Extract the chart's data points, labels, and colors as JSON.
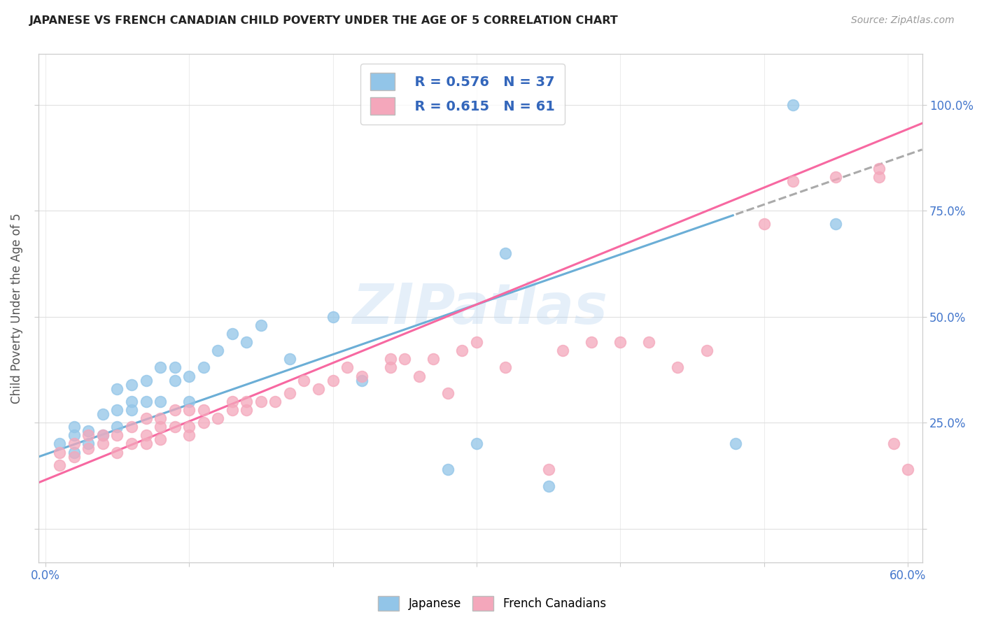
{
  "title": "JAPANESE VS FRENCH CANADIAN CHILD POVERTY UNDER THE AGE OF 5 CORRELATION CHART",
  "source": "Source: ZipAtlas.com",
  "ylabel": "Child Poverty Under the Age of 5",
  "xlim": [
    -0.005,
    0.61
  ],
  "ylim": [
    -0.08,
    1.12
  ],
  "yticks": [
    0.0,
    0.25,
    0.5,
    0.75,
    1.0
  ],
  "right_ytick_labels": [
    "",
    "25.0%",
    "50.0%",
    "75.0%",
    "100.0%"
  ],
  "xticks": [
    0.0,
    0.1,
    0.2,
    0.3,
    0.4,
    0.5,
    0.6
  ],
  "xtick_labels": [
    "0.0%",
    "",
    "",
    "",
    "",
    "",
    "60.0%"
  ],
  "japanese_color": "#92C5E8",
  "french_color": "#F4A7BB",
  "regression_japanese_color": "#6BAED6",
  "regression_french_color": "#F768A1",
  "watermark": "ZIPatlas",
  "legend_R_japanese": "R = 0.576",
  "legend_N_japanese": "N = 37",
  "legend_R_french": "R = 0.615",
  "legend_N_french": "N = 61",
  "japanese_x": [
    0.01,
    0.02,
    0.02,
    0.02,
    0.03,
    0.03,
    0.04,
    0.04,
    0.05,
    0.05,
    0.05,
    0.06,
    0.06,
    0.06,
    0.07,
    0.07,
    0.08,
    0.08,
    0.09,
    0.09,
    0.1,
    0.1,
    0.11,
    0.12,
    0.13,
    0.14,
    0.15,
    0.17,
    0.2,
    0.22,
    0.28,
    0.3,
    0.32,
    0.35,
    0.48,
    0.52,
    0.55
  ],
  "japanese_y": [
    0.2,
    0.18,
    0.22,
    0.24,
    0.2,
    0.23,
    0.22,
    0.27,
    0.24,
    0.28,
    0.33,
    0.28,
    0.3,
    0.34,
    0.3,
    0.35,
    0.3,
    0.38,
    0.35,
    0.38,
    0.3,
    0.36,
    0.38,
    0.42,
    0.46,
    0.44,
    0.48,
    0.4,
    0.5,
    0.35,
    0.14,
    0.2,
    0.65,
    0.1,
    0.2,
    1.0,
    0.72
  ],
  "french_x": [
    0.01,
    0.01,
    0.02,
    0.02,
    0.03,
    0.03,
    0.04,
    0.04,
    0.05,
    0.05,
    0.06,
    0.06,
    0.07,
    0.07,
    0.07,
    0.08,
    0.08,
    0.08,
    0.09,
    0.09,
    0.1,
    0.1,
    0.1,
    0.11,
    0.11,
    0.12,
    0.13,
    0.13,
    0.14,
    0.14,
    0.15,
    0.16,
    0.17,
    0.18,
    0.19,
    0.2,
    0.21,
    0.22,
    0.24,
    0.24,
    0.25,
    0.26,
    0.27,
    0.28,
    0.29,
    0.3,
    0.32,
    0.35,
    0.36,
    0.38,
    0.4,
    0.42,
    0.44,
    0.46,
    0.5,
    0.52,
    0.55,
    0.58,
    0.58,
    0.59,
    0.6
  ],
  "french_y": [
    0.15,
    0.18,
    0.17,
    0.2,
    0.19,
    0.22,
    0.2,
    0.22,
    0.18,
    0.22,
    0.2,
    0.24,
    0.2,
    0.22,
    0.26,
    0.21,
    0.24,
    0.26,
    0.24,
    0.28,
    0.22,
    0.24,
    0.28,
    0.25,
    0.28,
    0.26,
    0.28,
    0.3,
    0.28,
    0.3,
    0.3,
    0.3,
    0.32,
    0.35,
    0.33,
    0.35,
    0.38,
    0.36,
    0.38,
    0.4,
    0.4,
    0.36,
    0.4,
    0.32,
    0.42,
    0.44,
    0.38,
    0.14,
    0.42,
    0.44,
    0.44,
    0.44,
    0.38,
    0.42,
    0.72,
    0.82,
    0.83,
    0.83,
    0.85,
    0.2,
    0.14
  ],
  "background_color": "#FFFFFF",
  "grid_color": "#DDDDDD",
  "jp_reg_slope": 1.18,
  "jp_reg_intercept": 0.175,
  "fr_reg_slope": 1.38,
  "fr_reg_intercept": 0.115
}
